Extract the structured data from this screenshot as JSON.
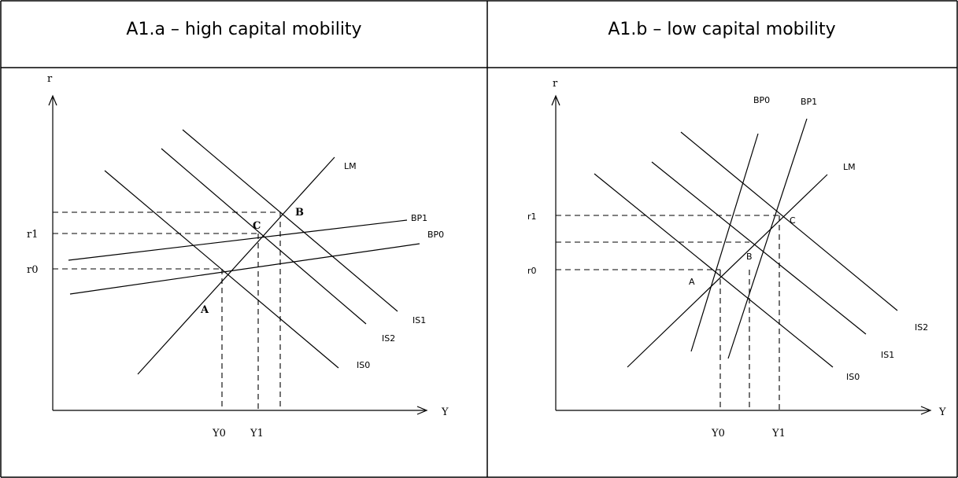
{
  "panels": [
    {
      "id": "a",
      "title": "A1.a – high capital mobility",
      "axis_y_label": "r",
      "axis_x_label": "Y",
      "curves": {
        "LM": "LM",
        "BP1": "BP1",
        "BP0": "BP0",
        "IS1": "IS1",
        "IS2": "IS2",
        "IS0": "IS0"
      },
      "ticks": {
        "r1": "r1",
        "r0": "r0",
        "Y0": "Y0",
        "Y1": "Y1"
      },
      "points": {
        "A": "A",
        "B": "B",
        "C": "C"
      }
    },
    {
      "id": "b",
      "title": "A1.b – low capital mobility",
      "axis_y_label": "r",
      "axis_x_label": "Y",
      "curves": {
        "LM": "LM",
        "BP0": "BP0",
        "BP1": "BP1",
        "IS2": "IS2",
        "IS1": "IS1",
        "IS0": "IS0"
      },
      "ticks": {
        "r1": "r1",
        "r0": "r0",
        "Y0": "Y0",
        "Y1": "Y1"
      },
      "points": {
        "A": "A",
        "B": "B",
        "C": "C"
      }
    }
  ]
}
